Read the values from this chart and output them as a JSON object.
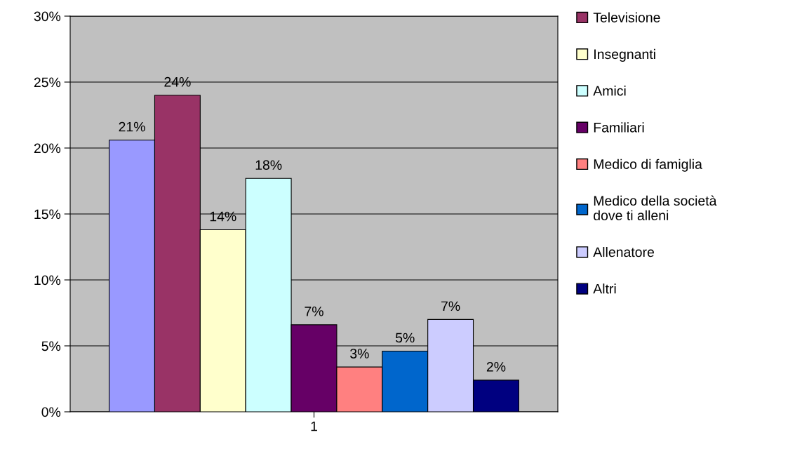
{
  "chart_data": {
    "type": "bar",
    "categories": [
      "1"
    ],
    "series": [
      {
        "color": "#9999ff",
        "values": [
          20.6
        ],
        "value_labels": [
          "21%"
        ]
      },
      {
        "name": "Televisione",
        "color": "#993366",
        "values": [
          24.0
        ],
        "value_labels": [
          "24%"
        ]
      },
      {
        "name": "Insegnanti",
        "color": "#ffffcc",
        "values": [
          13.8
        ],
        "value_labels": [
          "14%"
        ]
      },
      {
        "name": "Amici",
        "color": "#ccffff",
        "values": [
          17.7
        ],
        "value_labels": [
          "18%"
        ]
      },
      {
        "name": "Familiari",
        "color": "#660066",
        "values": [
          6.6
        ],
        "value_labels": [
          "7%"
        ]
      },
      {
        "name": "Medico di famiglia",
        "color": "#ff8080",
        "values": [
          3.4
        ],
        "value_labels": [
          "3%"
        ]
      },
      {
        "name": "Medico della società\ndove ti alleni",
        "color": "#0066cc",
        "values": [
          4.6
        ],
        "value_labels": [
          "5%"
        ]
      },
      {
        "name": "Allenatore",
        "color": "#ccccff",
        "values": [
          7.0
        ],
        "value_labels": [
          "7%"
        ]
      },
      {
        "name": "Altri",
        "color": "#000080",
        "values": [
          2.4
        ],
        "value_labels": [
          "2%"
        ]
      }
    ],
    "ylim": [
      0,
      30
    ],
    "yticks": [
      {
        "value": 0,
        "label": "0%"
      },
      {
        "value": 5,
        "label": "5%"
      },
      {
        "value": 10,
        "label": "10%"
      },
      {
        "value": 15,
        "label": "15%"
      },
      {
        "value": 20,
        "label": "20%"
      },
      {
        "value": 25,
        "label": "25%"
      },
      {
        "value": 30,
        "label": "30%"
      }
    ],
    "grid": "y",
    "legend": "right"
  }
}
